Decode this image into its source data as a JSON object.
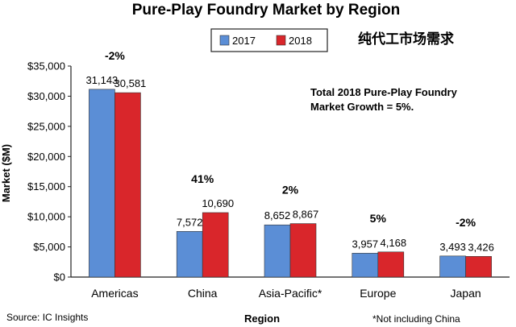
{
  "chart_data": {
    "type": "bar",
    "title": "Pure-Play Foundry Market by Region",
    "subtitle_cn": "纯代工市场需求",
    "xlabel": "Region",
    "ylabel": "Market ($M)",
    "ylim": [
      0,
      35000
    ],
    "y_ticks": [
      "$0",
      "$5,000",
      "$10,000",
      "$15,000",
      "$20,000",
      "$25,000",
      "$30,000",
      "$35,000"
    ],
    "categories": [
      "Americas",
      "China",
      "Asia-Pacific*",
      "Europe",
      "Japan"
    ],
    "series": [
      {
        "name": "2017",
        "color": "#5b8ed6",
        "values": [
          31143,
          7572,
          8652,
          3957,
          3493
        ],
        "labels": [
          "31,143",
          "7,572",
          "8,652",
          "3,957",
          "3,493"
        ]
      },
      {
        "name": "2018",
        "color": "#d9262b",
        "values": [
          30581,
          10690,
          8867,
          4168,
          3426
        ],
        "labels": [
          "30,581",
          "10,690",
          "8,867",
          "4,168",
          "3,426"
        ]
      }
    ],
    "growth": [
      "-2%",
      "41%",
      "2%",
      "5%",
      "-2%"
    ],
    "annotation": [
      "Total 2018 Pure-Play Foundry",
      "Market Growth = 5%."
    ],
    "source": "Source: IC Insights",
    "footnote": "*Not including China",
    "grid": false,
    "legend_position": "top-center"
  }
}
